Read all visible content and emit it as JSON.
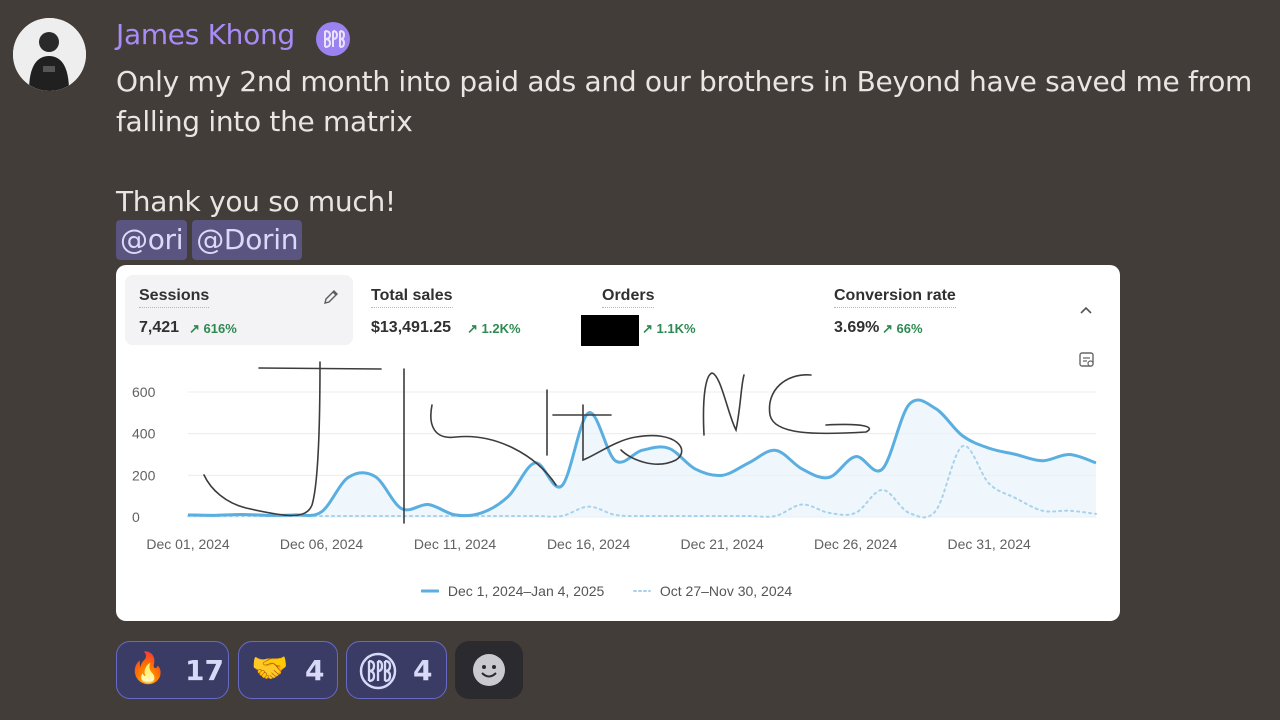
{
  "message": {
    "author": "James Khong",
    "avatar": "avatar",
    "badge_icon": "beyond-badge-icon",
    "lines": [
      "Only my 2nd month into paid ads and our brothers in Beyond have saved me from",
      "falling into the matrix",
      "",
      "Thank you so much!"
    ],
    "mentions": [
      "@ori",
      "@Dorin"
    ]
  },
  "dashboard": {
    "metrics": [
      {
        "title": "Sessions",
        "value": "7,421",
        "change": "↗ 616%",
        "active": true
      },
      {
        "title": "Total sales",
        "value": "$13,491.25",
        "change": "↗ 1.2K%"
      },
      {
        "title": "Orders",
        "value": "",
        "change": "↗ 1.1K%",
        "redacted": true
      },
      {
        "title": "Conversion rate",
        "value": "3.69%",
        "change": "↗ 66%"
      }
    ],
    "icons": {
      "edit": "pencil-icon",
      "collapse": "chevron-up-icon",
      "chart_menu": "chart-settings-icon"
    },
    "colors": {
      "current": "#5aaee0",
      "previous": "#a8d2ec",
      "positive": "#2f8a52"
    }
  },
  "chart_data": {
    "type": "line",
    "y_ticks": [
      "0",
      "200",
      "400",
      "600"
    ],
    "ylim": [
      0,
      700
    ],
    "x_tick_labels": [
      "Dec 01, 2024",
      "Dec 06, 2024",
      "Dec 11, 2024",
      "Dec 16, 2024",
      "Dec 21, 2024",
      "Dec 26, 2024",
      "Dec 31, 2024"
    ],
    "x": [
      "Dec 01",
      "Dec 02",
      "Dec 03",
      "Dec 04",
      "Dec 05",
      "Dec 06",
      "Dec 07",
      "Dec 08",
      "Dec 09",
      "Dec 10",
      "Dec 11",
      "Dec 12",
      "Dec 13",
      "Dec 14",
      "Dec 15",
      "Dec 16",
      "Dec 17",
      "Dec 18",
      "Dec 19",
      "Dec 20",
      "Dec 21",
      "Dec 22",
      "Dec 23",
      "Dec 24",
      "Dec 25",
      "Dec 26",
      "Dec 27",
      "Dec 28",
      "Dec 29",
      "Dec 30",
      "Dec 31",
      "Jan 01",
      "Jan 02",
      "Jan 03",
      "Jan 04"
    ],
    "series": [
      {
        "name": "Dec 1, 2024–Jan 4, 2025",
        "values": [
          10,
          8,
          12,
          8,
          10,
          25,
          190,
          195,
          40,
          60,
          10,
          20,
          100,
          260,
          150,
          500,
          270,
          320,
          330,
          230,
          200,
          260,
          320,
          230,
          190,
          290,
          230,
          540,
          520,
          390,
          330,
          300,
          270,
          300,
          260
        ]
      },
      {
        "name": "Oct 27–Nov 30, 2024",
        "values": [
          5,
          5,
          5,
          5,
          5,
          5,
          5,
          5,
          5,
          5,
          5,
          5,
          5,
          5,
          5,
          50,
          10,
          5,
          5,
          5,
          5,
          5,
          5,
          60,
          20,
          20,
          130,
          20,
          30,
          340,
          160,
          90,
          30,
          30,
          15
        ]
      }
    ],
    "legend_position": "bottom"
  },
  "reactions": [
    {
      "emoji": "🔥",
      "icon": "fire-emoji-icon",
      "count": "17"
    },
    {
      "emoji": "🤝",
      "icon": "handshake-emoji-icon",
      "count": "4"
    },
    {
      "emoji": "beyond",
      "icon": "beyond-emoji-icon",
      "count": "4"
    }
  ],
  "add_reaction_icon": "add-reaction-icon"
}
